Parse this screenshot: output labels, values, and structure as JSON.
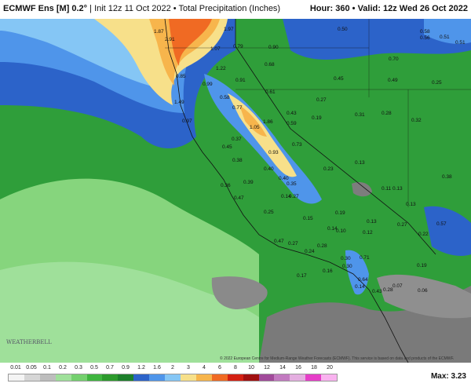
{
  "header": {
    "model": "ECMWF Ens [M] 0.2°",
    "init": "Init 12z 11 Oct 2022",
    "field": "Total Precipitation (Inches)",
    "hour": "Hour: 360",
    "valid": "Valid: 12z Wed 26 Oct 2022"
  },
  "legend": {
    "ticks": [
      "0.01",
      "0.05",
      "0.1",
      "0.2",
      "0.3",
      "0.5",
      "0.7",
      "0.9",
      "1.2",
      "1.6",
      "2",
      "3",
      "4",
      "6",
      "8",
      "10",
      "12",
      "14",
      "16",
      "18",
      "20"
    ],
    "colors": [
      "#f4f4f4",
      "#d6d6d6",
      "#bdbdbd",
      "#9fe09a",
      "#74d06e",
      "#3fb53f",
      "#2c9a2c",
      "#1c7f2a",
      "#2c63c9",
      "#4f95ea",
      "#85c6f5",
      "#f7e08a",
      "#f7b54c",
      "#f06a23",
      "#d42012",
      "#a11010",
      "#a14a9a",
      "#c27ac0",
      "#e4aee0",
      "#e63ec8",
      "#f9b2ef"
    ],
    "max_label": "Max: 3.23"
  },
  "copyright": "© 2022 European Centre for Medium-Range Weather Forecasts (ECMWF). This service is based on data and products of the ECMWF.",
  "logo_text": "WEATHERBELL",
  "values": [
    "1.87",
    "2.91",
    "1.97",
    "1.07",
    "0.79",
    "0.90",
    "0.50",
    "0.58",
    "0.56",
    "0.51",
    "0.51",
    "1.22",
    "0.68",
    "0.70",
    "0.49",
    "0.85",
    "0.99",
    "0.91",
    "0.45",
    "0.25",
    "0.61",
    "1.49",
    "0.58",
    "0.27",
    "0.43",
    "0.19",
    "0.31",
    "0.28",
    "0.32",
    "0.97",
    "0.77",
    "1.05",
    "1.86",
    "0.59",
    "0.73",
    "0.37",
    "0.45",
    "0.40",
    "0.38",
    "0.93",
    "0.13",
    "0.23",
    "0.40",
    "0.35",
    "0.39",
    "0.36",
    "0.14",
    "0.27",
    "0.11",
    "0.13",
    "0.38",
    "0.47",
    "0.13",
    "0.57",
    "0.25",
    "0.15",
    "0.19",
    "0.13",
    "0.14",
    "0.10",
    "0.12",
    "0.27",
    "0.22",
    "0.47",
    "0.27",
    "0.24",
    "0.28",
    "0.30",
    "0.71",
    "0.30",
    "0.19",
    "0.17",
    "0.16",
    "0.64",
    "0.14",
    "0.07",
    "0.06",
    "0.28",
    "0.43"
  ]
}
